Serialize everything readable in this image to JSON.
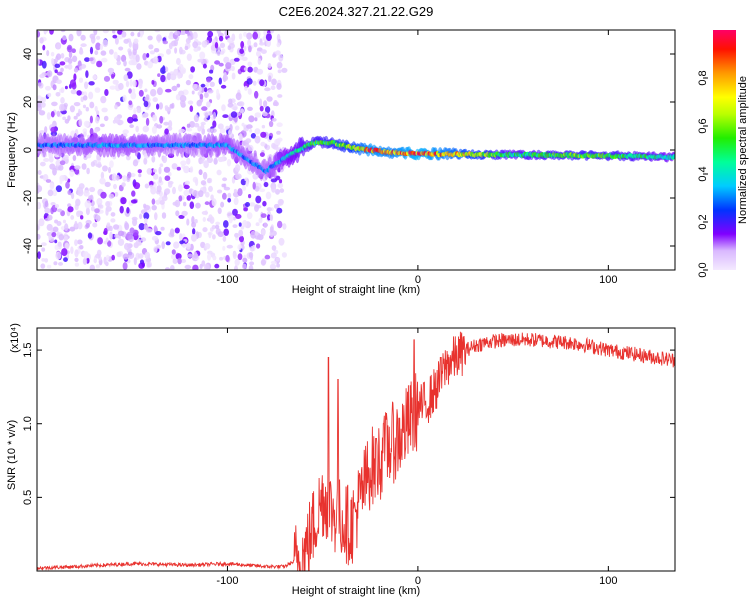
{
  "title": "C2E6.2024.327.21.22.G29",
  "chart_data": [
    {
      "type": "heatmap",
      "xlabel": "Height of straight line (km)",
      "ylabel": "Frequency (Hz)",
      "xlim": [
        -200,
        135
      ],
      "ylim": [
        -50,
        50
      ],
      "x_ticks": [
        -100,
        0,
        100
      ],
      "x_tick_labels": [
        "-100",
        "0",
        "100"
      ],
      "y_ticks": [
        -40,
        -20,
        0,
        20,
        40
      ],
      "y_tick_labels": [
        "-40",
        "-20",
        "0",
        "20",
        "40"
      ],
      "colorbar": {
        "label": "Normalized spectral amplitude",
        "range": [
          0,
          1
        ],
        "ticks": [
          0.0,
          0.2,
          0.4,
          0.6,
          0.8
        ],
        "tick_labels": [
          "0.0",
          "0.2",
          "0.4",
          "0.6",
          "0.8"
        ]
      },
      "ridge": {
        "x": [
          -200,
          -160,
          -120,
          -100,
          -80,
          -75,
          -65,
          -55,
          -45,
          -35,
          -25,
          -15,
          0,
          20,
          50,
          80,
          110,
          135
        ],
        "frequency": [
          2,
          2,
          2,
          2,
          -9,
          -6,
          -1,
          3,
          3,
          1,
          0,
          -1,
          -1.5,
          -1.8,
          -2,
          -2.2,
          -2.5,
          -3
        ],
        "amplitude": [
          0.3,
          0.35,
          0.3,
          0.35,
          0.3,
          0.35,
          0.45,
          0.55,
          0.6,
          0.7,
          0.9,
          0.85,
          0.95,
          0.8,
          0.5,
          0.6,
          0.55,
          0.45
        ]
      },
      "noise_region_x": [
        -200,
        -70
      ]
    },
    {
      "type": "line",
      "xlabel": "Height of straight line (km)",
      "ylabel": "SNR (10 * v/v)",
      "y_multiplier": "(x10⁴)",
      "xlim": [
        -200,
        135
      ],
      "ylim": [
        0,
        1.65
      ],
      "x_ticks": [
        -100,
        0,
        100
      ],
      "x_tick_labels": [
        "-100",
        "0",
        "100"
      ],
      "y_ticks": [
        0.5,
        1.0,
        1.5
      ],
      "y_tick_labels": [
        "0.5",
        "1.0",
        "1.5"
      ],
      "line_color": "#e8322e",
      "series": [
        {
          "x": [
            -200,
            -180,
            -150,
            -120,
            -100,
            -80,
            -70,
            -60,
            -55,
            -50,
            -45,
            -40,
            -35,
            -30,
            -25,
            -20,
            -15,
            -10,
            -5,
            0,
            5,
            10,
            15,
            20,
            25,
            30,
            35,
            40,
            50,
            60,
            70,
            80,
            90,
            100,
            110,
            120,
            135
          ],
          "values": [
            0.02,
            0.03,
            0.05,
            0.04,
            0.05,
            0.03,
            0.03,
            0.1,
            0.3,
            0.5,
            0.4,
            0.35,
            0.3,
            0.5,
            0.7,
            0.75,
            0.85,
            0.9,
            1.0,
            1.1,
            1.15,
            1.25,
            1.4,
            1.45,
            1.5,
            1.53,
            1.55,
            1.56,
            1.57,
            1.57,
            1.56,
            1.55,
            1.53,
            1.5,
            1.48,
            1.46,
            1.43
          ],
          "peaks": [
            {
              "x": -47,
              "value": 1.45
            },
            {
              "x": -42,
              "value": 1.3
            },
            {
              "x": -22,
              "value": 0.9
            },
            {
              "x": -18,
              "value": 1.0
            },
            {
              "x": -2,
              "value": 1.57
            },
            {
              "x": 12,
              "value": 1.45
            }
          ]
        }
      ]
    }
  ]
}
